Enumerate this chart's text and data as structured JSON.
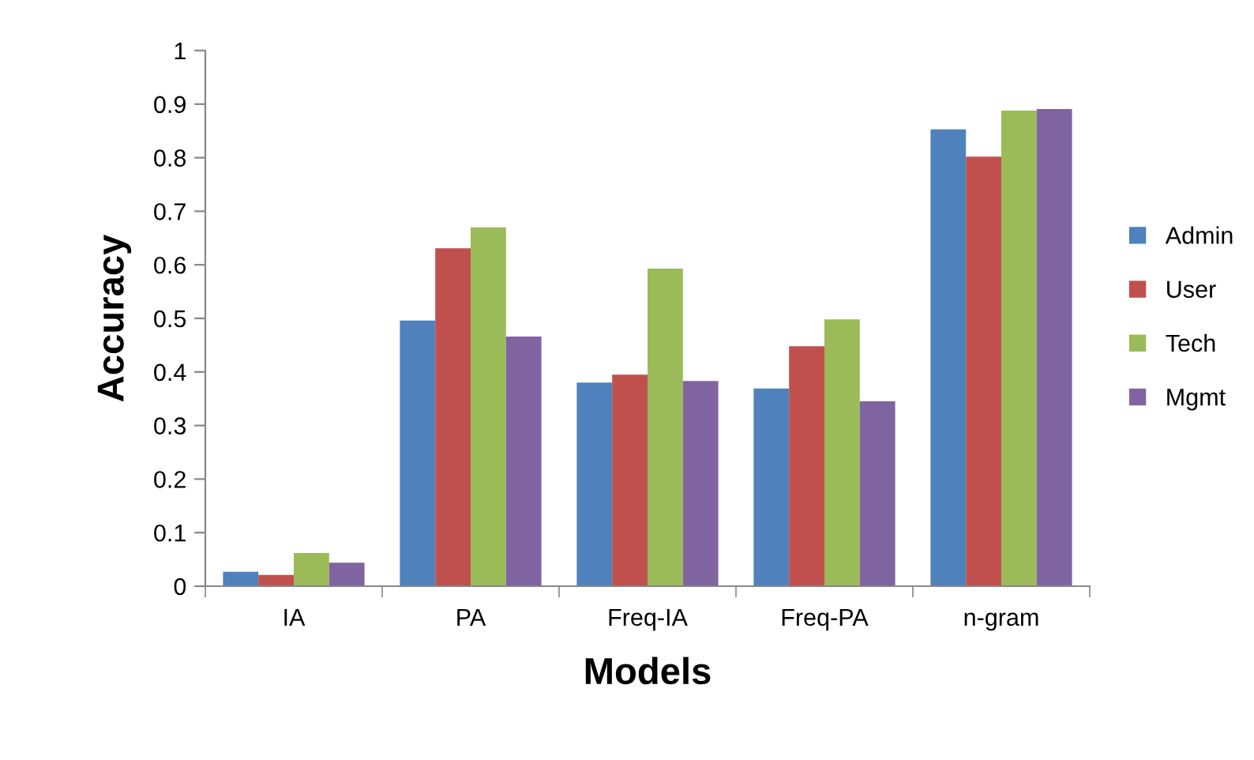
{
  "chart_data": {
    "type": "bar",
    "xlabel": "Models",
    "ylabel": "Accuracy",
    "categories": [
      "IA",
      "PA",
      "Freq-IA",
      "Freq-PA",
      "n-gram"
    ],
    "series": [
      {
        "name": "Admin",
        "color": "#4f81bd",
        "values": [
          0.027,
          0.496,
          0.38,
          0.369,
          0.853
        ]
      },
      {
        "name": "User",
        "color": "#c0504d",
        "values": [
          0.021,
          0.631,
          0.395,
          0.448,
          0.802
        ]
      },
      {
        "name": "Tech",
        "color": "#9bbb59",
        "values": [
          0.062,
          0.67,
          0.593,
          0.498,
          0.888
        ]
      },
      {
        "name": "Mgmt",
        "color": "#8064a2",
        "values": [
          0.044,
          0.466,
          0.383,
          0.345,
          0.891
        ]
      }
    ],
    "ylim": [
      0,
      1
    ],
    "yticks": [
      0,
      {
        "value": 0.1,
        "label": "0.1"
      },
      {
        "value": 0.2,
        "label": "0.2"
      },
      {
        "value": 0.3,
        "label": "0.3"
      },
      {
        "value": 0.4,
        "label": "0.4"
      },
      {
        "value": 0.5,
        "label": "0.5"
      },
      {
        "value": 0.6,
        "label": "0.6"
      },
      {
        "value": 0.7,
        "label": "0.7"
      },
      {
        "value": 0.8,
        "label": "0.8"
      },
      {
        "value": 0.9,
        "label": "0.9"
      },
      1
    ],
    "grid": false,
    "legend": "right"
  }
}
